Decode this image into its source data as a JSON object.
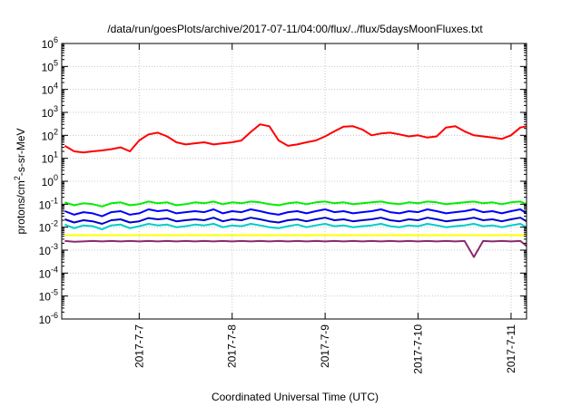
{
  "chart_data": {
    "type": "line",
    "title": "/data/run/goesPlots/archive/2017-07-11/04:00/flux/../flux/5daysMoonFluxes.txt",
    "xlabel": "Coordinated Universal Time (UTC)",
    "ylabel": "protons/cm²-s-sr-MeV",
    "yscale": "log",
    "ylim": [
      1e-06,
      1000000.0
    ],
    "xlim": [
      "2017-07-06T04:00",
      "2017-07-11T04:00"
    ],
    "grid": true,
    "legend": "none",
    "x_ticks": [
      "2017-7-7",
      "2017-7-8",
      "2017-7-9",
      "2017-7-10",
      "2017-7-11"
    ],
    "x_tick_days": [
      7,
      8,
      9,
      10,
      11
    ],
    "y_ticks": [
      {
        "base": "10",
        "exp": "6"
      },
      {
        "base": "10",
        "exp": "5"
      },
      {
        "base": "10",
        "exp": "4"
      },
      {
        "base": "10",
        "exp": "3"
      },
      {
        "base": "10",
        "exp": "2"
      },
      {
        "base": "10",
        "exp": "1"
      },
      {
        "base": "10",
        "exp": "0"
      },
      {
        "base": "10",
        "exp": "-1"
      },
      {
        "base": "10",
        "exp": "-2"
      },
      {
        "base": "10",
        "exp": "-3"
      },
      {
        "base": "10",
        "exp": "-4"
      },
      {
        "base": "10",
        "exp": "-5"
      },
      {
        "base": "10",
        "exp": "-6"
      }
    ],
    "x_days": [
      6.0,
      6.1,
      6.2,
      6.3,
      6.4,
      6.5,
      6.6,
      6.7,
      6.8,
      6.9,
      7.0,
      7.1,
      7.2,
      7.3,
      7.4,
      7.5,
      7.6,
      7.7,
      7.8,
      7.9,
      8.0,
      8.1,
      8.2,
      8.3,
      8.4,
      8.5,
      8.6,
      8.7,
      8.8,
      8.9,
      9.0,
      9.1,
      9.2,
      9.3,
      9.4,
      9.5,
      9.6,
      9.7,
      9.8,
      9.9,
      10.0,
      10.1,
      10.2,
      10.3,
      10.4,
      10.5,
      10.6,
      10.7,
      10.8,
      10.9,
      11.0,
      11.1,
      11.2
    ],
    "series": [
      {
        "color": "#ff0000",
        "values": [
          100,
          60,
          35,
          20,
          18,
          20,
          22,
          25,
          30,
          20,
          60,
          110,
          130,
          90,
          50,
          40,
          45,
          50,
          40,
          45,
          50,
          60,
          140,
          300,
          250,
          60,
          35,
          40,
          50,
          60,
          90,
          150,
          240,
          250,
          180,
          100,
          120,
          130,
          110,
          90,
          100,
          80,
          90,
          220,
          250,
          150,
          100,
          90,
          80,
          70,
          100,
          220,
          250
        ]
      },
      {
        "color": "#00ee00",
        "values": [
          0.08,
          0.1,
          0.12,
          0.09,
          0.11,
          0.1,
          0.08,
          0.11,
          0.12,
          0.09,
          0.1,
          0.13,
          0.11,
          0.12,
          0.09,
          0.1,
          0.12,
          0.11,
          0.13,
          0.1,
          0.12,
          0.11,
          0.13,
          0.12,
          0.1,
          0.09,
          0.11,
          0.12,
          0.1,
          0.12,
          0.13,
          0.11,
          0.12,
          0.1,
          0.11,
          0.12,
          0.13,
          0.11,
          0.1,
          0.12,
          0.11,
          0.13,
          0.12,
          0.1,
          0.11,
          0.12,
          0.13,
          0.11,
          0.12,
          0.1,
          0.12,
          0.13,
          0.1
        ]
      },
      {
        "color": "#0000ff",
        "values": [
          0.03,
          0.04,
          0.05,
          0.035,
          0.045,
          0.04,
          0.03,
          0.045,
          0.05,
          0.035,
          0.04,
          0.06,
          0.05,
          0.055,
          0.04,
          0.045,
          0.05,
          0.045,
          0.06,
          0.04,
          0.05,
          0.045,
          0.06,
          0.05,
          0.04,
          0.035,
          0.045,
          0.05,
          0.04,
          0.05,
          0.06,
          0.045,
          0.05,
          0.04,
          0.045,
          0.05,
          0.06,
          0.045,
          0.04,
          0.05,
          0.045,
          0.06,
          0.05,
          0.04,
          0.045,
          0.05,
          0.06,
          0.045,
          0.05,
          0.04,
          0.05,
          0.06,
          0.04
        ]
      },
      {
        "color": "#0000cc",
        "values": [
          0.015,
          0.02,
          0.022,
          0.016,
          0.02,
          0.018,
          0.014,
          0.02,
          0.022,
          0.016,
          0.018,
          0.025,
          0.022,
          0.024,
          0.018,
          0.02,
          0.022,
          0.02,
          0.026,
          0.018,
          0.022,
          0.02,
          0.026,
          0.022,
          0.018,
          0.016,
          0.02,
          0.022,
          0.018,
          0.022,
          0.026,
          0.02,
          0.022,
          0.018,
          0.02,
          0.022,
          0.026,
          0.02,
          0.018,
          0.022,
          0.02,
          0.026,
          0.022,
          0.018,
          0.02,
          0.022,
          0.026,
          0.02,
          0.022,
          0.018,
          0.022,
          0.026,
          0.018
        ]
      },
      {
        "color": "#00cccc",
        "values": [
          0.01,
          0.012,
          0.013,
          0.009,
          0.012,
          0.011,
          0.008,
          0.012,
          0.013,
          0.009,
          0.011,
          0.014,
          0.012,
          0.013,
          0.01,
          0.011,
          0.013,
          0.012,
          0.014,
          0.01,
          0.012,
          0.011,
          0.014,
          0.012,
          0.01,
          0.009,
          0.011,
          0.013,
          0.01,
          0.012,
          0.014,
          0.011,
          0.012,
          0.01,
          0.011,
          0.012,
          0.014,
          0.011,
          0.01,
          0.012,
          0.011,
          0.014,
          0.012,
          0.01,
          0.011,
          0.012,
          0.014,
          0.011,
          0.012,
          0.01,
          0.012,
          0.014,
          0.01
        ]
      },
      {
        "color": "#ffff00",
        "values": [
          0.0045,
          0.0045,
          0.0045,
          0.0045,
          0.0045,
          0.0045,
          0.0045,
          0.0045,
          0.0045,
          0.0045,
          0.0045,
          0.0045,
          0.0045,
          0.0045,
          0.0045,
          0.0045,
          0.0045,
          0.0045,
          0.0045,
          0.0045,
          0.0045,
          0.0045,
          0.0045,
          0.0045,
          0.0045,
          0.0045,
          0.0045,
          0.0045,
          0.0045,
          0.0045,
          0.0045,
          0.0045,
          0.0045,
          0.0045,
          0.0045,
          0.0045,
          0.0045,
          0.0045,
          0.0045,
          0.0045,
          0.0045,
          0.0045,
          0.0045,
          0.0045,
          0.0045,
          0.0045,
          0.0045,
          0.0045,
          0.0045,
          0.0045,
          0.0045,
          0.0045,
          0.0045
        ]
      },
      {
        "color": "#8b2a6e",
        "values": [
          0.0025,
          0.0024,
          0.0025,
          0.0023,
          0.0024,
          0.0025,
          0.0024,
          0.0025,
          0.0024,
          0.0025,
          0.0024,
          0.0025,
          0.0024,
          0.0025,
          0.0024,
          0.0025,
          0.0024,
          0.0025,
          0.0024,
          0.0025,
          0.0024,
          0.0025,
          0.0024,
          0.0025,
          0.0024,
          0.0025,
          0.0024,
          0.0025,
          0.0024,
          0.0025,
          0.0024,
          0.0025,
          0.0024,
          0.0025,
          0.0024,
          0.0025,
          0.0024,
          0.0025,
          0.0024,
          0.0025,
          0.0024,
          0.0025,
          0.0024,
          0.0025,
          0.0024,
          0.0025,
          0.0005,
          0.0025,
          0.0024,
          0.0025,
          0.0024,
          0.0025,
          0.0015
        ]
      }
    ]
  }
}
